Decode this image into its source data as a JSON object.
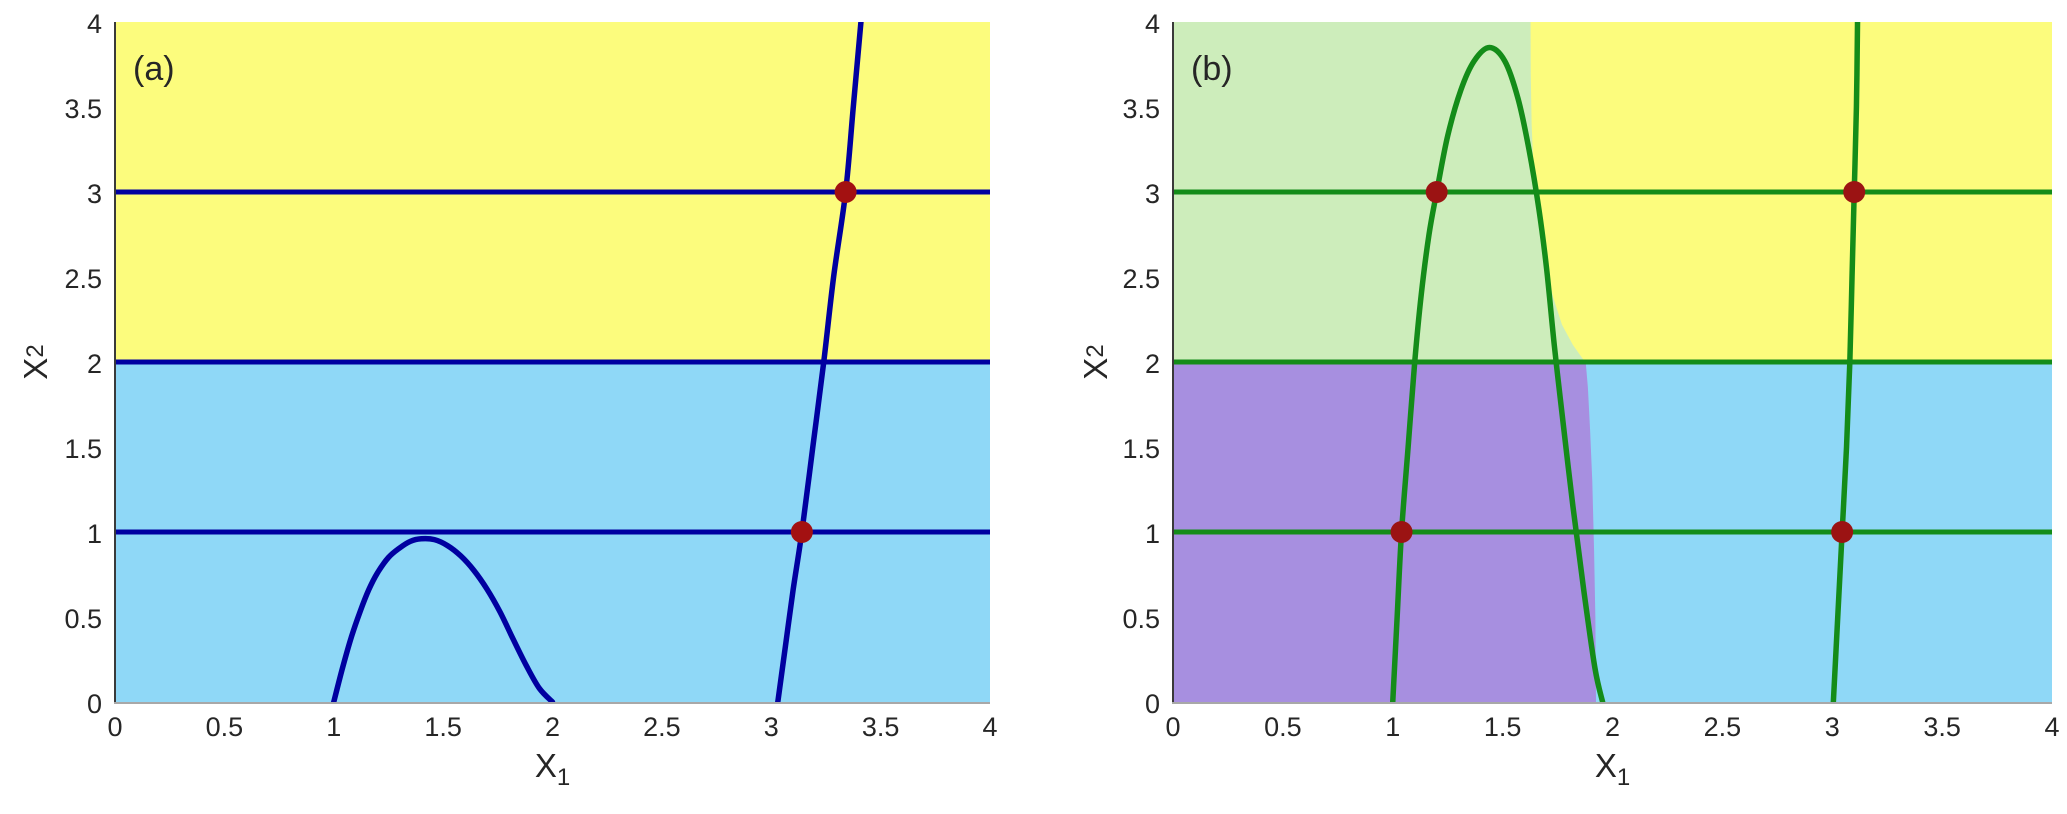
{
  "figure": {
    "background": "#ffffff",
    "tick_color": "#262626",
    "axis_left_color": "#3a3a3a",
    "axis_bottom_color": "#a8a8a8"
  },
  "chart_data": [
    {
      "type": "line",
      "panel_label": "(a)",
      "title": "",
      "xlabel_base": "X",
      "xlabel_sub": "1",
      "ylabel_base": "X",
      "ylabel_sub": "2",
      "xlim": [
        0,
        4
      ],
      "ylim": [
        0,
        4
      ],
      "grid": false,
      "legend": null,
      "xticks": [
        0,
        0.5,
        1,
        1.5,
        2,
        2.5,
        3,
        3.5,
        4
      ],
      "xtick_labels": [
        "0",
        "0.5",
        "1",
        "1.5",
        "2",
        "2.5",
        "3",
        "3.5",
        "4"
      ],
      "yticks": [
        0,
        0.5,
        1,
        1.5,
        2,
        2.5,
        3,
        3.5,
        4
      ],
      "ytick_labels": [
        "0",
        "0.5",
        "1",
        "1.5",
        "2",
        "2.5",
        "3",
        "3.5",
        "4"
      ],
      "line_color": "#0000A0",
      "point_color": "#A31111",
      "regions": [
        {
          "name": "upper-basin-yellow",
          "color": "#FCFC7D",
          "polygon": [
            [
              0,
              2
            ],
            [
              4,
              2
            ],
            [
              4,
              4
            ],
            [
              0,
              4
            ]
          ]
        },
        {
          "name": "lower-basin-blue",
          "color": "#8FD8F7",
          "polygon": [
            [
              0,
              0
            ],
            [
              4,
              0
            ],
            [
              4,
              2
            ],
            [
              0,
              2
            ]
          ]
        }
      ],
      "horizontal_lines": [
        1,
        2,
        3
      ],
      "curves": [
        {
          "name": "hump-curve",
          "points": [
            [
              1.0,
              0.0
            ],
            [
              1.04,
              0.2
            ],
            [
              1.08,
              0.38
            ],
            [
              1.12,
              0.53
            ],
            [
              1.16,
              0.66
            ],
            [
              1.2,
              0.76
            ],
            [
              1.25,
              0.85
            ],
            [
              1.3,
              0.905
            ],
            [
              1.35,
              0.945
            ],
            [
              1.4,
              0.96
            ],
            [
              1.46,
              0.955
            ],
            [
              1.52,
              0.92
            ],
            [
              1.58,
              0.86
            ],
            [
              1.64,
              0.775
            ],
            [
              1.7,
              0.665
            ],
            [
              1.76,
              0.53
            ],
            [
              1.82,
              0.37
            ],
            [
              1.88,
              0.215
            ],
            [
              1.94,
              0.08
            ],
            [
              2.0,
              0.0
            ]
          ]
        },
        {
          "name": "rising-curve",
          "points": [
            [
              3.03,
              0.0
            ],
            [
              3.065,
              0.33
            ],
            [
              3.1,
              0.66
            ],
            [
              3.14,
              1.0
            ],
            [
              3.19,
              1.5
            ],
            [
              3.24,
              2.0
            ],
            [
              3.285,
              2.5
            ],
            [
              3.34,
              3.0
            ],
            [
              3.375,
              3.5
            ],
            [
              3.41,
              4.0
            ]
          ]
        }
      ],
      "equilibrium_points": [
        [
          3.14,
          1
        ],
        [
          3.34,
          3
        ]
      ]
    },
    {
      "type": "line",
      "panel_label": "(b)",
      "title": "",
      "xlabel_base": "X",
      "xlabel_sub": "1",
      "ylabel_base": "X",
      "ylabel_sub": "2",
      "xlim": [
        0,
        4
      ],
      "ylim": [
        0,
        4
      ],
      "grid": false,
      "legend": null,
      "xticks": [
        0,
        0.5,
        1,
        1.5,
        2,
        2.5,
        3,
        3.5,
        4
      ],
      "xtick_labels": [
        "0",
        "0.5",
        "1",
        "1.5",
        "2",
        "2.5",
        "3",
        "3.5",
        "4"
      ],
      "yticks": [
        0,
        0.5,
        1,
        1.5,
        2,
        2.5,
        3,
        3.5,
        4
      ],
      "ytick_labels": [
        "0",
        "0.5",
        "1",
        "1.5",
        "2",
        "2.5",
        "3",
        "3.5",
        "4"
      ],
      "line_color": "#148C19",
      "point_color": "#9B1313",
      "regions": [
        {
          "name": "upper-right-basin-yellow",
          "color": "#FCFC7D",
          "polygon": [
            [
              0,
              2
            ],
            [
              4,
              2
            ],
            [
              4,
              4
            ],
            [
              0,
              4
            ]
          ]
        },
        {
          "name": "lower-right-basin-blue",
          "color": "#8FD8F7",
          "polygon": [
            [
              0,
              0
            ],
            [
              4,
              0
            ],
            [
              4,
              2
            ],
            [
              0,
              2
            ]
          ]
        },
        {
          "name": "upper-left-basin-green",
          "color": "#CDEDBB",
          "polygon": [
            [
              0,
              2
            ],
            [
              1.875,
              2
            ],
            [
              1.82,
              2.1
            ],
            [
              1.77,
              2.22
            ],
            [
              1.73,
              2.38
            ],
            [
              1.7,
              2.55
            ],
            [
              1.672,
              2.75
            ],
            [
              1.652,
              2.95
            ],
            [
              1.64,
              3.15
            ],
            [
              1.632,
              3.4
            ],
            [
              1.628,
              3.7
            ],
            [
              1.627,
              4.0
            ],
            [
              0,
              4
            ]
          ]
        },
        {
          "name": "lower-left-basin-purple",
          "color": "#A78FE0",
          "polygon": [
            [
              0,
              0
            ],
            [
              1.925,
              0
            ],
            [
              1.922,
              0.5
            ],
            [
              1.916,
              0.9
            ],
            [
              1.908,
              1.3
            ],
            [
              1.898,
              1.6
            ],
            [
              1.888,
              1.85
            ],
            [
              1.878,
              2.0
            ],
            [
              0,
              2
            ]
          ]
        }
      ],
      "horizontal_lines": [
        1,
        2,
        3
      ],
      "curves": [
        {
          "name": "tall-parabola-curve",
          "points": [
            [
              1.0,
              0.0
            ],
            [
              1.02,
              0.5
            ],
            [
              1.04,
              1.0
            ],
            [
              1.07,
              1.5
            ],
            [
              1.1,
              2.0
            ],
            [
              1.13,
              2.4
            ],
            [
              1.165,
              2.75
            ],
            [
              1.2,
              3.0
            ],
            [
              1.25,
              3.33
            ],
            [
              1.31,
              3.6
            ],
            [
              1.37,
              3.77
            ],
            [
              1.44,
              3.85
            ],
            [
              1.51,
              3.77
            ],
            [
              1.57,
              3.55
            ],
            [
              1.62,
              3.25
            ],
            [
              1.665,
              2.9
            ],
            [
              1.7,
              2.55
            ],
            [
              1.735,
              2.1
            ],
            [
              1.77,
              1.7
            ],
            [
              1.82,
              1.15
            ],
            [
              1.87,
              0.65
            ],
            [
              1.92,
              0.2
            ],
            [
              1.955,
              0.0
            ]
          ]
        },
        {
          "name": "rising-curve",
          "points": [
            [
              3.005,
              0.0
            ],
            [
              3.025,
              0.5
            ],
            [
              3.045,
              1.0
            ],
            [
              3.065,
              1.5
            ],
            [
              3.08,
              2.0
            ],
            [
              3.09,
              2.5
            ],
            [
              3.1,
              3.0
            ],
            [
              3.11,
              3.5
            ],
            [
              3.115,
              4.0
            ]
          ]
        }
      ],
      "equilibrium_points": [
        [
          1.04,
          1
        ],
        [
          3.045,
          1
        ],
        [
          1.2,
          3
        ],
        [
          3.1,
          3
        ]
      ]
    }
  ]
}
